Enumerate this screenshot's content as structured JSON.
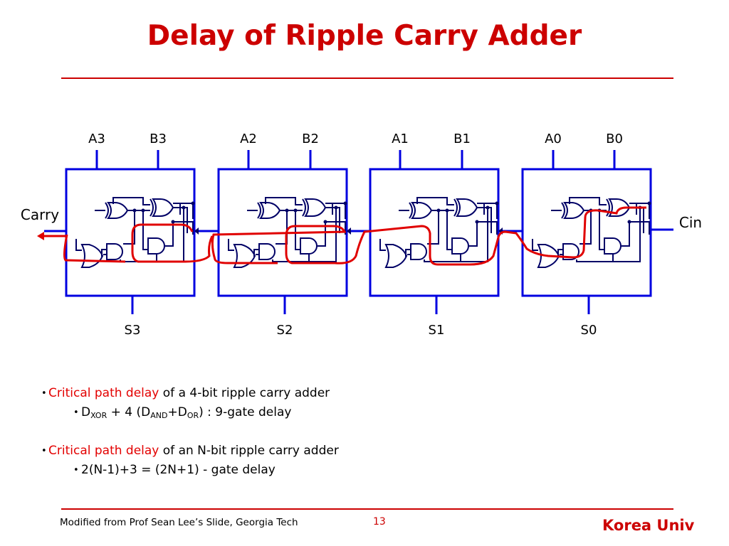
{
  "title": "Delay of Ripple Carry Adder",
  "diagram": {
    "adders": [
      {
        "a": "A3",
        "b": "B3",
        "s": "S3"
      },
      {
        "a": "A2",
        "b": "B2",
        "s": "S2"
      },
      {
        "a": "A1",
        "b": "B1",
        "s": "S1"
      },
      {
        "a": "A0",
        "b": "B0",
        "s": "S0"
      }
    ],
    "carry_out_label": "Carry",
    "carry_in_label": "Cin"
  },
  "bullets": {
    "b1_highlight": "Critical path delay",
    "b1_rest": " of a 4-bit ripple carry adder",
    "b1_sub": {
      "d": "D",
      "xor": "XOR",
      "mid": " + 4 (D",
      "and": "AND",
      "plus": "+D",
      "or": "OR",
      "end": ") : 9-gate delay"
    },
    "b2_highlight": "Critical path delay",
    "b2_rest": " of an N-bit ripple carry adder",
    "b2_sub": "2(N-1)+3 = (2N+1) - gate delay"
  },
  "footer": {
    "credit": "Modified from Prof Sean Lee’s Slide, Georgia Tech",
    "page": "13",
    "org": "Korea Univ"
  },
  "colors": {
    "title": "#cc0000",
    "highlight": "#e30000",
    "box": "#0000e0",
    "gates": "#000066",
    "path": "#e00000"
  }
}
